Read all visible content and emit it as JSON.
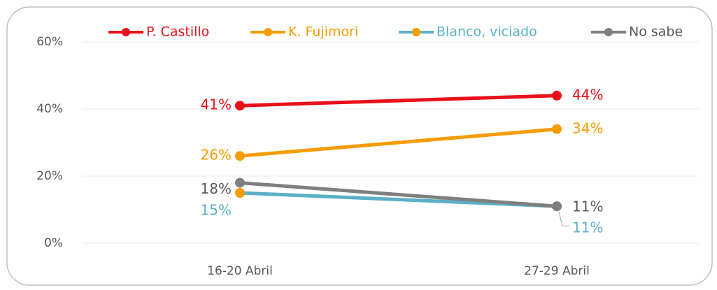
{
  "chart_data": {
    "type": "line",
    "categories": [
      "16-20 Abril",
      "27-29 Abril"
    ],
    "series": [
      {
        "name": "P. Castillo",
        "color": "#e8101a",
        "values": [
          41,
          44
        ],
        "value_labels": [
          "41%",
          "44%"
        ]
      },
      {
        "name": "K. Fujimori",
        "color": "#f59c00",
        "values": [
          26,
          34
        ],
        "value_labels": [
          "26%",
          "34%"
        ]
      },
      {
        "name": "Blanco, viciado",
        "color": "#5ab1c7",
        "marker_color": "#f59c00",
        "values": [
          15,
          11
        ],
        "value_labels": [
          "15%",
          "11%"
        ]
      },
      {
        "name": "No sabe",
        "color": "#7f7f7f",
        "values": [
          18,
          11
        ],
        "value_labels": [
          "18%",
          "11%"
        ]
      }
    ],
    "ylim": [
      0,
      60
    ],
    "yticks": [
      {
        "value": 0,
        "label": "0%"
      },
      {
        "value": 20,
        "label": "20%"
      },
      {
        "value": 40,
        "label": "40%"
      },
      {
        "value": 60,
        "label": "60%"
      }
    ],
    "grid": true,
    "legend": "top"
  }
}
